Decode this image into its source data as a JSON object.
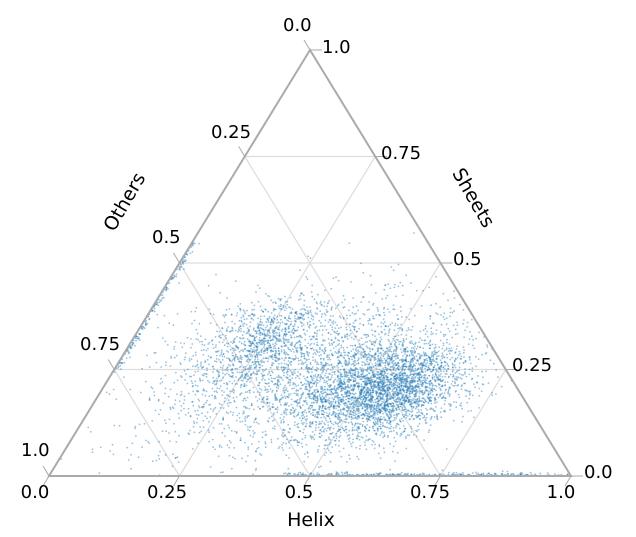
{
  "chart_data": {
    "type": "scatter",
    "subtype": "ternary",
    "title": "",
    "axes": {
      "bottom": {
        "label": "Helix",
        "ticks": [
          "0.0",
          "0.25",
          "0.5",
          "0.75",
          "1.0"
        ]
      },
      "right": {
        "label": "Sheets",
        "ticks": [
          "0.0",
          "0.25",
          "0.5",
          "0.75",
          "1.0"
        ]
      },
      "left": {
        "label": "Others",
        "ticks": [
          "0.0",
          "0.25",
          "0.5",
          "0.75",
          "1.0"
        ]
      }
    },
    "grid": true,
    "range": [
      0,
      1
    ],
    "point_color": "#1f77b4",
    "point_opacity": 0.45,
    "clusters": [
      {
        "helix": 0.55,
        "sheets": 0.2,
        "others": 0.25,
        "weight": 0.42,
        "spread_helix": 0.07,
        "spread_sheets": 0.055
      },
      {
        "helix": 0.47,
        "sheets": 0.23,
        "others": 0.3,
        "weight": 0.2,
        "spread_helix": 0.1,
        "spread_sheets": 0.08
      },
      {
        "helix": 0.32,
        "sheets": 0.24,
        "others": 0.44,
        "weight": 0.24,
        "spread_helix": 0.13,
        "spread_sheets": 0.1
      },
      {
        "helix": 0.25,
        "sheets": 0.32,
        "others": 0.43,
        "weight": 0.12,
        "spread_helix": 0.05,
        "spread_sheets": 0.05
      }
    ],
    "edge_bands": [
      {
        "edge": "sheets=0",
        "helix_from": 0.45,
        "helix_to": 1.0,
        "weight": 0.05
      },
      {
        "edge": "helix=0",
        "sheets_from": 0.25,
        "sheets_to": 0.55,
        "weight": 0.03
      }
    ]
  }
}
